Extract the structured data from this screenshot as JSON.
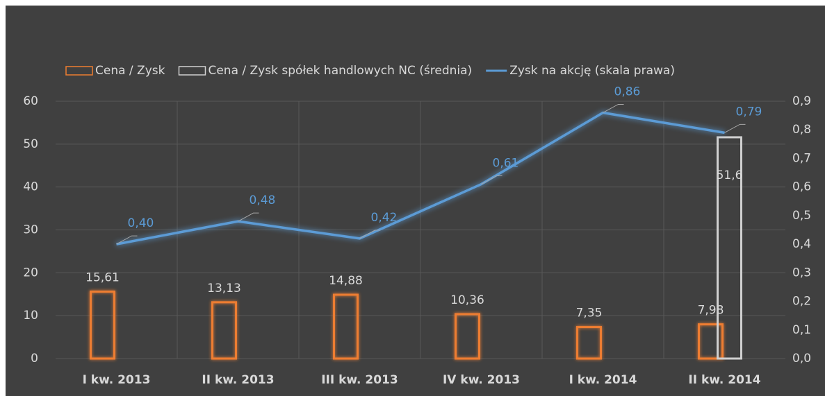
{
  "chart_data": {
    "type": "bar-line",
    "categories": [
      "I kw. 2013",
      "II kw. 2013",
      "III kw. 2013",
      "IV kw. 2013",
      "I kw. 2014",
      "II kw. 2014"
    ],
    "series": [
      {
        "name": "Cena / Zysk",
        "color": "#ed7d31",
        "type": "bar",
        "values": [
          15.61,
          13.13,
          14.88,
          10.36,
          7.35,
          7.98
        ],
        "value_labels": [
          "15,61",
          "13,13",
          "14,88",
          "10,36",
          "7,35",
          "7,98"
        ]
      },
      {
        "name": "Cena / Zysk spółek handlowych NC (średnia)",
        "color": "#d0d0d0",
        "type": "bar",
        "values": [
          null,
          null,
          null,
          null,
          null,
          51.6
        ],
        "value_labels": [
          null,
          null,
          null,
          null,
          null,
          "51,6"
        ]
      },
      {
        "name": "Zysk na akcję (skala prawa)",
        "color": "#5b9bd5",
        "type": "line",
        "axis": "y2",
        "values": [
          0.4,
          0.48,
          0.42,
          0.61,
          0.86,
          0.79
        ],
        "value_labels": [
          "0,40",
          "0,48",
          "0,42",
          "0,61",
          "0,86",
          "0,79"
        ]
      }
    ],
    "ylim": [
      0,
      60
    ],
    "yticks": [
      0,
      10,
      20,
      30,
      40,
      50,
      60
    ],
    "y2lim": [
      0,
      0.9
    ],
    "y2ticks": [
      {
        "value": 0,
        "label": "0,0"
      },
      {
        "value": 0.1,
        "label": "0,1"
      },
      {
        "value": 0.2,
        "label": "0,2"
      },
      {
        "value": 0.3,
        "label": "0,3"
      },
      {
        "value": 0.4,
        "label": "0,4"
      },
      {
        "value": 0.5,
        "label": "0,5"
      },
      {
        "value": 0.6,
        "label": "0,6"
      },
      {
        "value": 0.7,
        "label": "0,7"
      },
      {
        "value": 0.8,
        "label": "0,8"
      },
      {
        "value": 0.9,
        "label": "0,9"
      }
    ],
    "grid": true,
    "legend": "top"
  }
}
